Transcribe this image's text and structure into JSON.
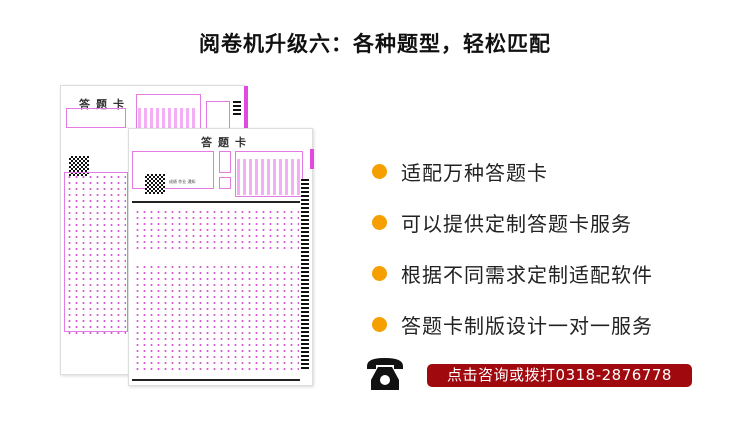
{
  "title": "阅卷机升级六：各种题型，轻松匹配",
  "sheet_back": {
    "heading": "答题卡"
  },
  "sheet_front": {
    "heading": "答题卡",
    "caption": "成绩 作业 通知"
  },
  "features": [
    {
      "label": "适配万种答题卡"
    },
    {
      "label": "可以提供定制答题卡服务"
    },
    {
      "label": "根据不同需求定制适配软件"
    },
    {
      "label": "答题卡制版设计一对一服务"
    }
  ],
  "cta": {
    "label": "点击咨询或拨打0318-2876778"
  },
  "colors": {
    "bullet": "#f5a000",
    "cta_bg": "#a0090e",
    "sheet_accent": "#e04ae0"
  },
  "icons": {
    "phone": "telephone-icon"
  }
}
